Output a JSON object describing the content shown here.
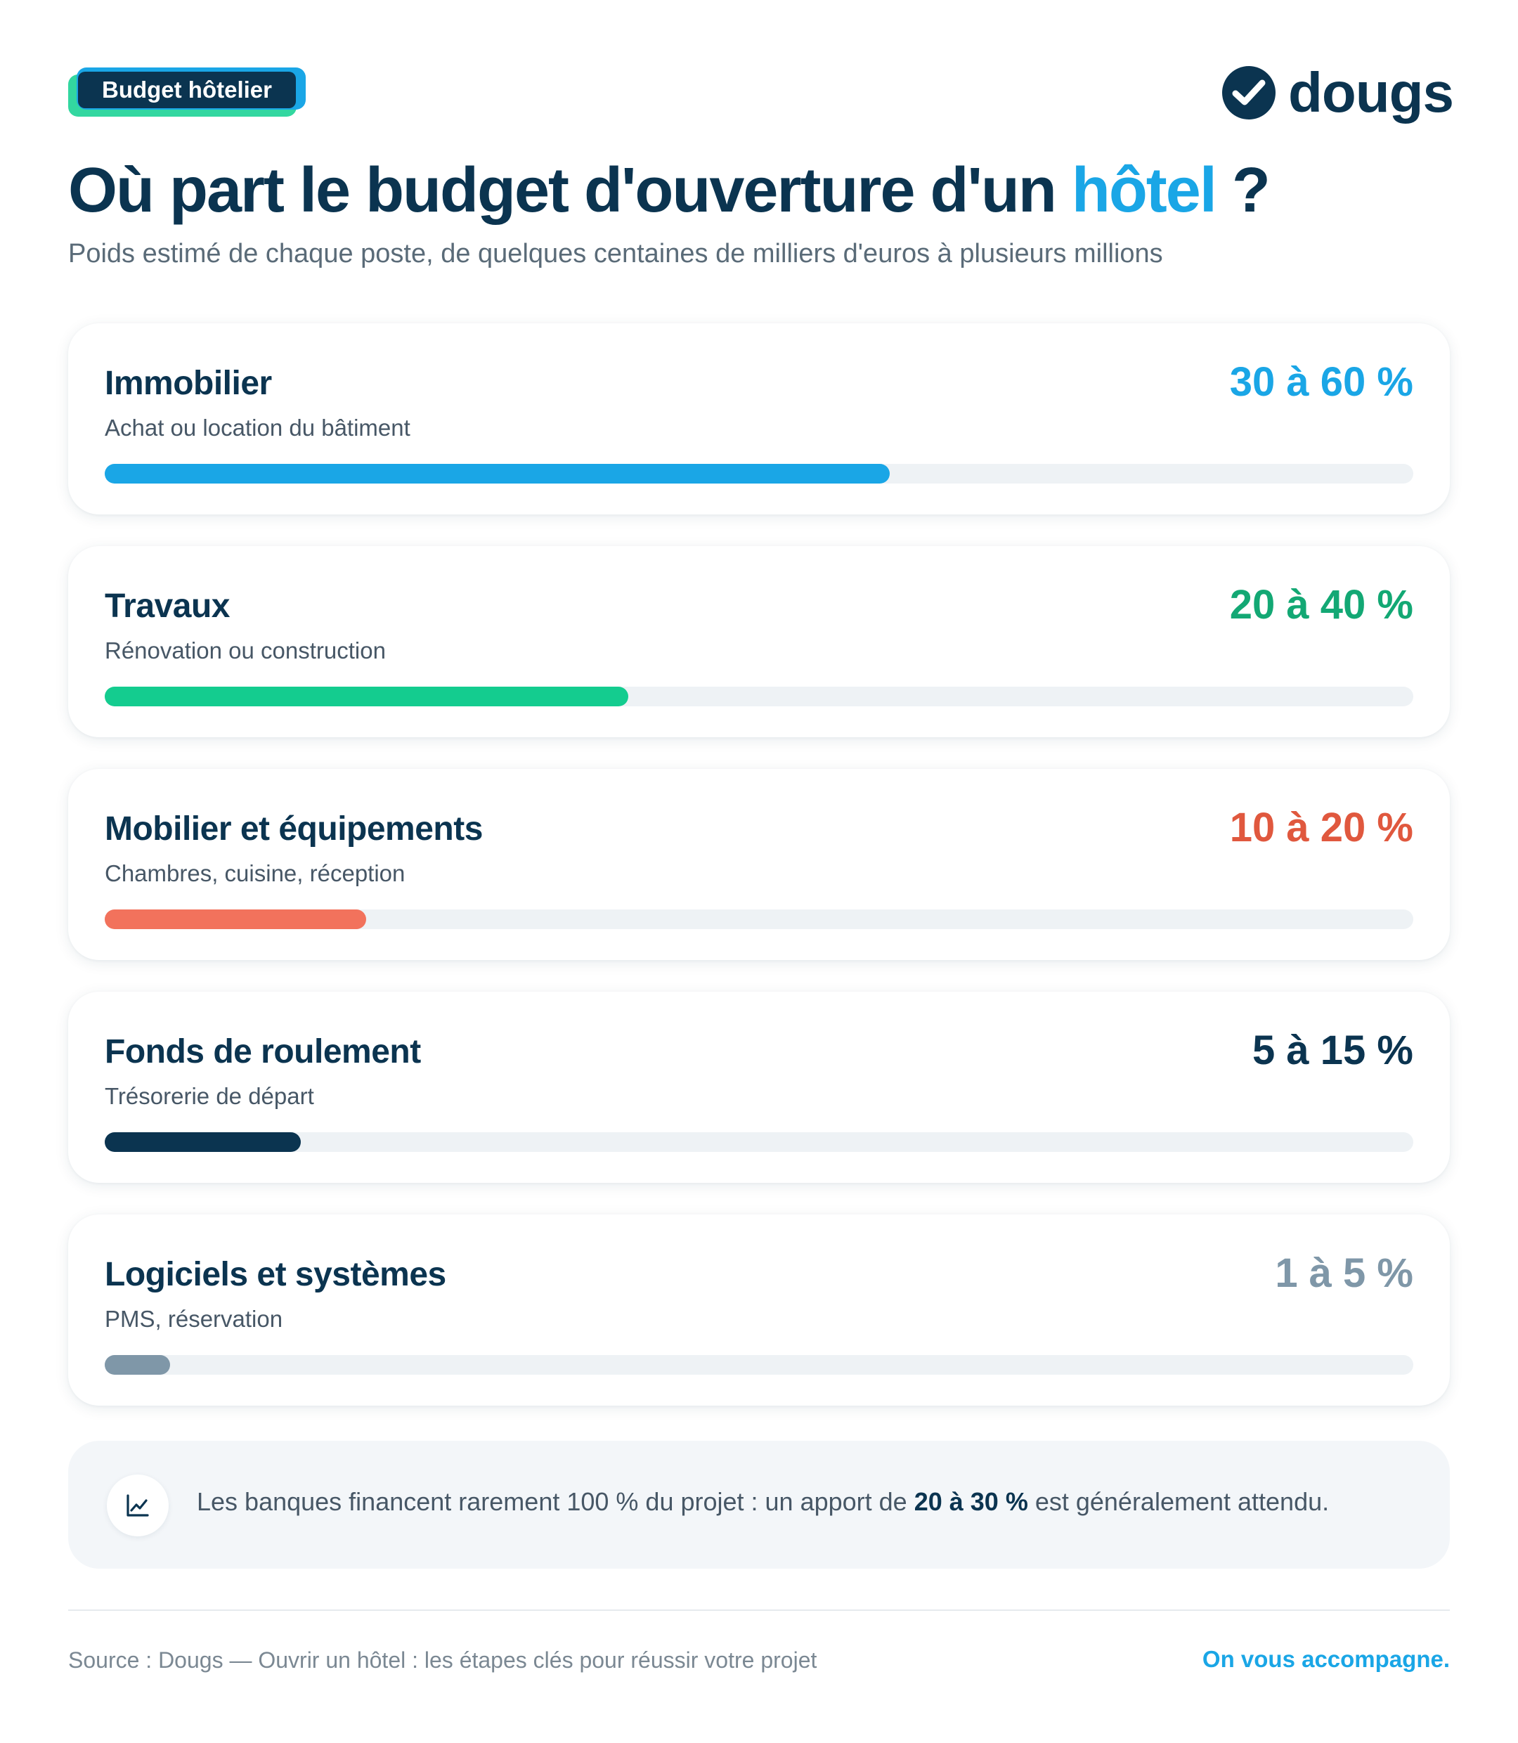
{
  "header": {
    "badge": "Budget hôtelier",
    "logo_text": "dougs",
    "title_main": "Où part le budget d'ouverture d'un ",
    "title_accent": "hôtel",
    "title_end": " ?",
    "subtitle": "Poids estimé de chaque poste, de quelques centaines de milliers d'euros à plusieurs millions"
  },
  "colors": {
    "navy": "#0b3450",
    "blue": "#1aa6e6",
    "green": "#14cc8f",
    "green_text": "#13a874",
    "coral": "#f2725c",
    "coral_text": "#e0583e",
    "gray": "#7f97a8",
    "track": "#eef2f5"
  },
  "chart_data": {
    "type": "bar",
    "orientation": "horizontal",
    "categories": [
      "Immobilier",
      "Travaux",
      "Mobilier et équipements",
      "Fonds de roulement",
      "Logiciels et systèmes"
    ],
    "descriptions": [
      "Achat ou location du bâtiment",
      "Rénovation ou construction",
      "Chambres, cuisine, réception",
      "Trésorerie de départ",
      "PMS, réservation"
    ],
    "range_labels": [
      "30 à 60 %",
      "20 à 40 %",
      "10 à 20 %",
      "5 à 15 %",
      "1 à 5 %"
    ],
    "ranges": [
      [
        30,
        60
      ],
      [
        20,
        40
      ],
      [
        10,
        20
      ],
      [
        5,
        15
      ],
      [
        1,
        5
      ]
    ],
    "values": [
      60,
      40,
      20,
      15,
      5
    ],
    "xlim": [
      0,
      100
    ],
    "bar_colors": [
      "#1aa6e6",
      "#14cc8f",
      "#f2725c",
      "#0b3450",
      "#7f97a8"
    ],
    "label_colors": [
      "#1aa6e6",
      "#13a874",
      "#e0583e",
      "#0b3450",
      "#7f97a8"
    ]
  },
  "note": {
    "icon": "line-chart-icon",
    "text_before": "Les banques financent rarement 100 % du projet : un apport de ",
    "text_bold": "20 à 30 %",
    "text_after": " est généralement attendu."
  },
  "footer": {
    "source": "Source : Dougs — Ouvrir un hôtel : les étapes clés pour réussir votre projet",
    "tagline": "On vous accompagne."
  }
}
